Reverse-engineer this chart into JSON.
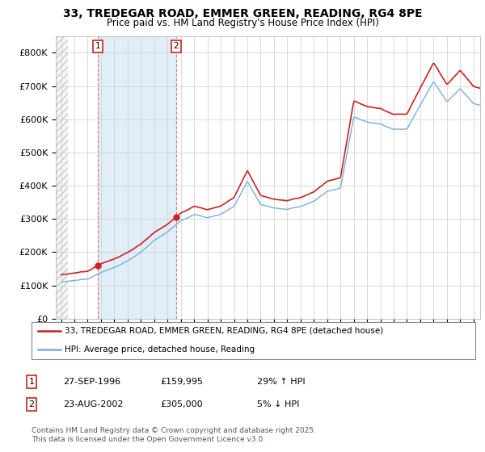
{
  "title": "33, TREDEGAR ROAD, EMMER GREEN, READING, RG4 8PE",
  "subtitle": "Price paid vs. HM Land Registry's House Price Index (HPI)",
  "ylim": [
    0,
    850000
  ],
  "yticks": [
    0,
    100000,
    200000,
    300000,
    400000,
    500000,
    600000,
    700000,
    800000
  ],
  "ytick_labels": [
    "£0",
    "£100K",
    "£200K",
    "£300K",
    "£400K",
    "£500K",
    "£600K",
    "£700K",
    "£800K"
  ],
  "hpi_color": "#7aaedc",
  "hpi_fill_color": "#c5ddf0",
  "price_color": "#cc2222",
  "t1_year": 1996.74,
  "t1_price": 159995,
  "t2_year": 2002.64,
  "t2_price": 305000,
  "hatch_region_1_start": 1993.6,
  "hatch_region_1_end": 1994.5,
  "shade_region_start": 1996.74,
  "shade_region_end": 2002.64,
  "legend_entry_1": "33, TREDEGAR ROAD, EMMER GREEN, READING, RG4 8PE (detached house)",
  "legend_entry_2": "HPI: Average price, detached house, Reading",
  "footer": "Contains HM Land Registry data © Crown copyright and database right 2025.\nThis data is licensed under the Open Government Licence v3.0.",
  "background_color": "#ffffff",
  "grid_color": "#cccccc",
  "xmin": 1993.6,
  "xmax": 2025.5
}
